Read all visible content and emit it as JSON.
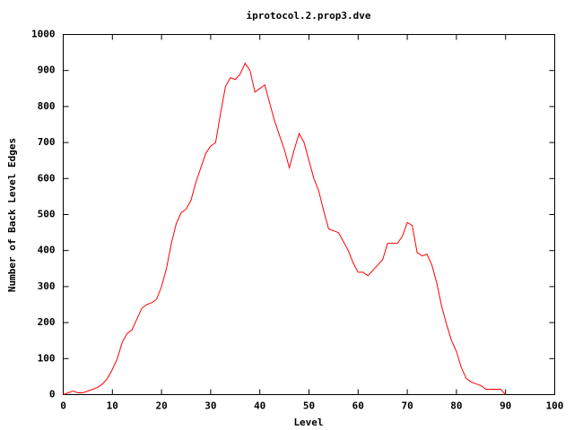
{
  "chart_data": {
    "type": "line",
    "title": "iprotocol.2.prop3.dve",
    "xlabel": "Level",
    "ylabel": "Number of Back Level Edges",
    "x": [
      0,
      1,
      2,
      3,
      4,
      5,
      6,
      7,
      8,
      9,
      10,
      11,
      12,
      13,
      14,
      15,
      16,
      17,
      18,
      19,
      20,
      21,
      22,
      23,
      24,
      25,
      26,
      27,
      28,
      29,
      30,
      31,
      32,
      33,
      34,
      35,
      36,
      37,
      38,
      39,
      40,
      41,
      42,
      43,
      44,
      45,
      46,
      47,
      48,
      49,
      50,
      51,
      52,
      53,
      54,
      55,
      56,
      57,
      58,
      59,
      60,
      61,
      62,
      63,
      64,
      65,
      66,
      67,
      68,
      69,
      70,
      71,
      72,
      73,
      74,
      75,
      76,
      77,
      78,
      79,
      80,
      81,
      82,
      83,
      84,
      85,
      86,
      87,
      88,
      89,
      90
    ],
    "values": [
      0,
      5,
      10,
      5,
      5,
      10,
      15,
      20,
      30,
      45,
      70,
      100,
      145,
      170,
      180,
      210,
      240,
      250,
      255,
      265,
      300,
      350,
      420,
      475,
      505,
      515,
      540,
      590,
      630,
      670,
      690,
      700,
      780,
      855,
      880,
      875,
      890,
      920,
      900,
      840,
      850,
      860,
      810,
      760,
      720,
      680,
      630,
      680,
      725,
      700,
      650,
      600,
      565,
      510,
      460,
      455,
      450,
      425,
      400,
      365,
      340,
      340,
      330,
      345,
      360,
      375,
      420,
      420,
      420,
      440,
      478,
      470,
      395,
      385,
      390,
      360,
      310,
      245,
      195,
      150,
      120,
      75,
      45,
      35,
      30,
      25,
      15,
      15,
      15,
      15,
      0
    ],
    "color": "#ff0000",
    "xlim": [
      0,
      100
    ],
    "xticks": [
      0,
      10,
      20,
      30,
      40,
      50,
      60,
      70,
      80,
      90,
      100
    ],
    "ylim": [
      0,
      1000
    ],
    "yticks": [
      0,
      100,
      200,
      300,
      400,
      500,
      600,
      700,
      800,
      900,
      1000
    ],
    "grid": false
  }
}
